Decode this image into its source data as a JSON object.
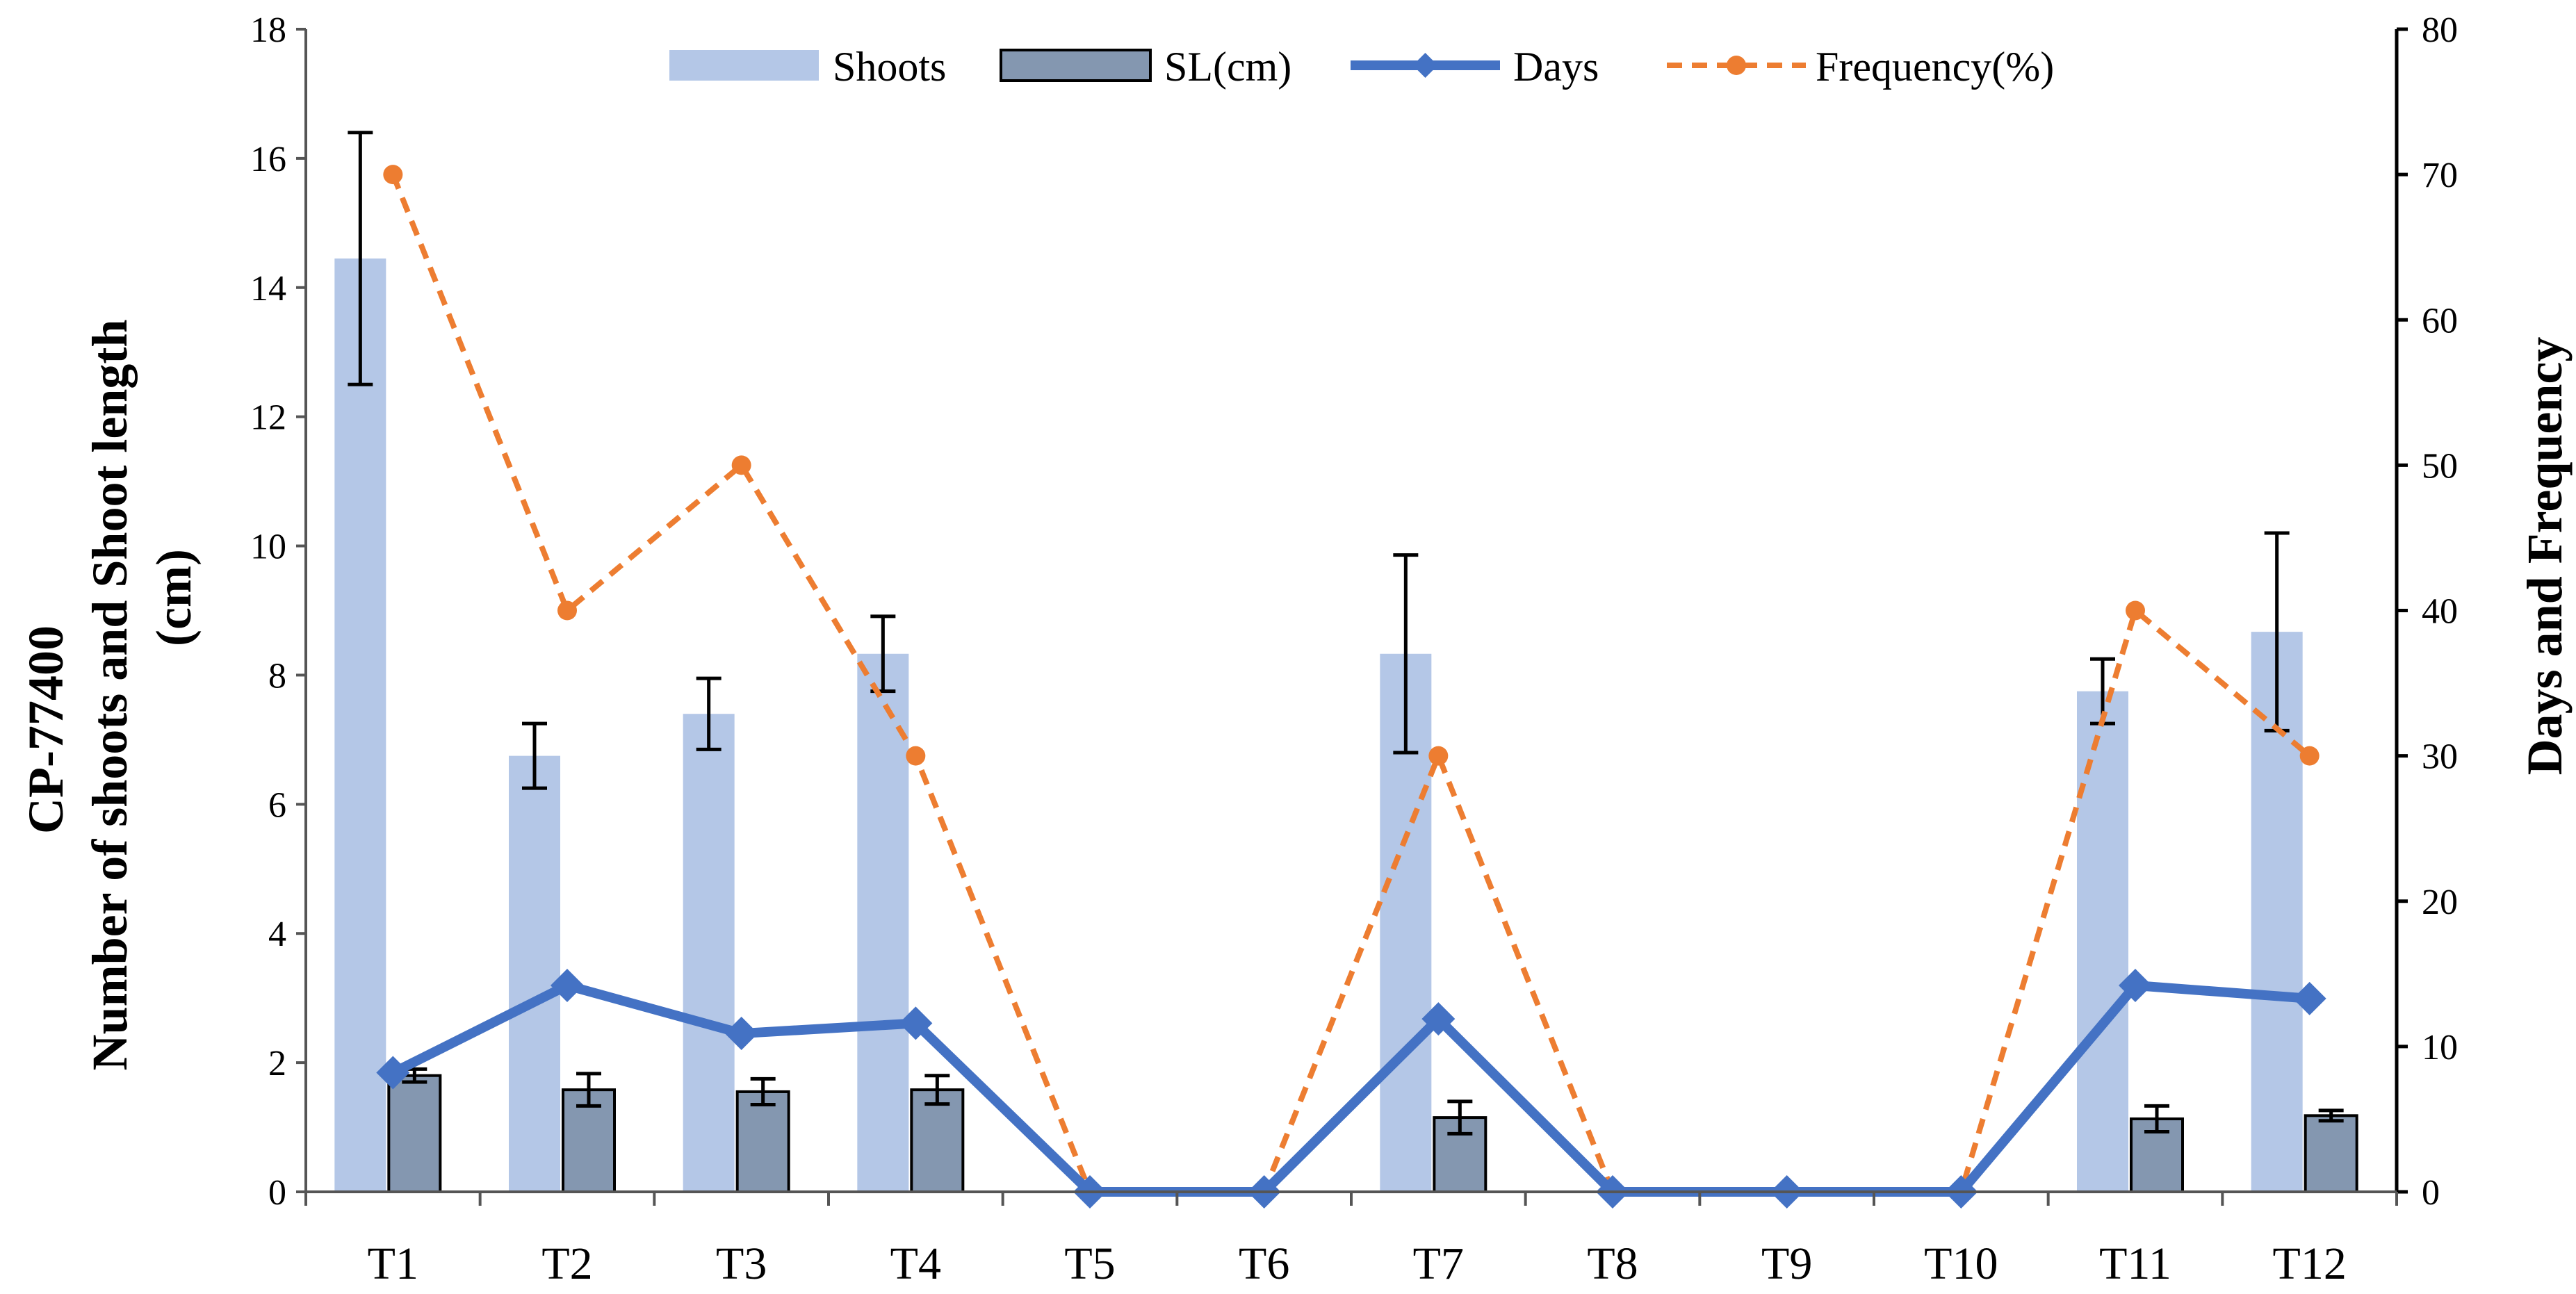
{
  "chart_data": {
    "type": "bar-line combo",
    "categories": [
      "T1",
      "T2",
      "T3",
      "T4",
      "T5",
      "T6",
      "T7",
      "T8",
      "T9",
      "T10",
      "T11",
      "T12"
    ],
    "series": [
      {
        "name": "Shoots",
        "kind": "bar",
        "axis": "left",
        "color": "#B4C7E7",
        "values": [
          14.45,
          6.75,
          7.4,
          8.33,
          0,
          0,
          8.33,
          0,
          0,
          0,
          7.75,
          8.67
        ],
        "errors": [
          1.95,
          0.5,
          0.55,
          0.58,
          0,
          0,
          1.53,
          0,
          0,
          0,
          0.5,
          1.53
        ]
      },
      {
        "name": "SL(cm)",
        "kind": "bar",
        "axis": "left",
        "color": "#8497B0",
        "values": [
          1.8,
          1.58,
          1.55,
          1.58,
          0,
          0,
          1.15,
          0,
          0,
          0,
          1.13,
          1.18
        ],
        "errors": [
          0.1,
          0.25,
          0.2,
          0.22,
          0,
          0,
          0.25,
          0,
          0,
          0,
          0.2,
          0.08
        ]
      },
      {
        "name": "Days",
        "kind": "line",
        "axis": "right",
        "color": "#4472C4",
        "marker": "diamond",
        "values": [
          8.2,
          14.2,
          10.9,
          11.6,
          0,
          0,
          11.9,
          0,
          0,
          0,
          14.2,
          13.3
        ]
      },
      {
        "name": "Frequency(%)",
        "kind": "line",
        "axis": "right",
        "color": "#ED7D31",
        "dashed": true,
        "marker": "circle",
        "values": [
          70,
          40,
          50,
          30,
          0,
          0,
          30,
          0,
          0,
          0,
          40,
          30
        ]
      }
    ],
    "left_axis": {
      "title_line1": "CP-77400",
      "title_line2": "Number of shoots and Shoot length",
      "title_line3": "(cm)",
      "range": [
        0,
        18
      ],
      "ticks": [
        "0",
        "2",
        "4",
        "6",
        "8",
        "10",
        "12",
        "14",
        "16",
        "18"
      ]
    },
    "right_axis": {
      "title": "Days and Frequency",
      "range": [
        0,
        80
      ],
      "ticks": [
        "0",
        "10",
        "20",
        "30",
        "40",
        "50",
        "60",
        "70",
        "80"
      ]
    },
    "legend_position": "top"
  }
}
